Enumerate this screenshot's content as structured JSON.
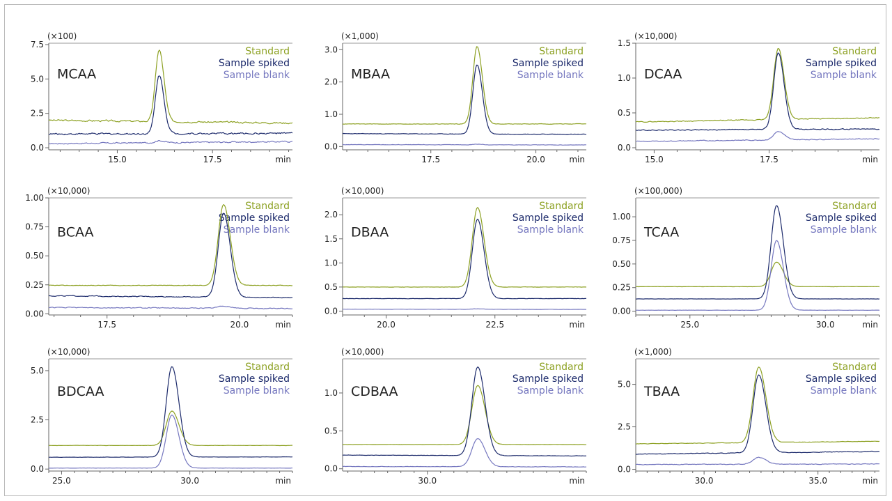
{
  "legend_labels": [
    "Standard",
    "Sample spiked",
    "Sample blank"
  ],
  "colors": {
    "standard": "#8da123",
    "spiked": "#1c2a6b",
    "blank": "#7577bf",
    "axis": "#666666",
    "text": "#222222"
  },
  "x_unit": "min",
  "chart_data": [
    {
      "type": "line",
      "title": "MCAA",
      "multiplier": "(×100)",
      "xlim": [
        13.2,
        19.6
      ],
      "ylim": [
        -0.15,
        7.6
      ],
      "xticks": [
        "15.0",
        "17.5"
      ],
      "yticks": [
        "0.0",
        "2.5",
        "5.0",
        "7.5"
      ],
      "peak_x": 16.1,
      "peak_width": 0.1,
      "series": [
        {
          "name": "Standard",
          "baseline": 2.0,
          "end": 1.8,
          "height": 5.2,
          "noise": 0.1
        },
        {
          "name": "Sample spiked",
          "baseline": 1.0,
          "end": 1.05,
          "height": 4.25,
          "noise": 0.1
        },
        {
          "name": "Sample blank",
          "baseline": 0.3,
          "end": 0.45,
          "height": 0.15,
          "noise": 0.08
        }
      ]
    },
    {
      "type": "line",
      "title": "MBAA",
      "multiplier": "(×1,000)",
      "xlim": [
        15.4,
        21.2
      ],
      "ylim": [
        -0.1,
        3.2
      ],
      "xticks": [
        "17.5",
        "20.0"
      ],
      "yticks": [
        "0.0",
        "1.0",
        "2.0",
        "3.0"
      ],
      "peak_x": 18.6,
      "peak_width": 0.1,
      "series": [
        {
          "name": "Standard",
          "baseline": 0.7,
          "end": 0.7,
          "height": 2.4,
          "noise": 0.012
        },
        {
          "name": "Sample spiked",
          "baseline": 0.4,
          "end": 0.38,
          "height": 2.15,
          "noise": 0.012
        },
        {
          "name": "Sample blank",
          "baseline": 0.06,
          "end": 0.05,
          "height": 0.02,
          "noise": 0.01
        }
      ]
    },
    {
      "type": "line",
      "title": "DCAA",
      "multiplier": "(×10,000)",
      "xlim": [
        14.6,
        19.9
      ],
      "ylim": [
        -0.03,
        1.5
      ],
      "xticks": [
        "15.0",
        "17.5"
      ],
      "yticks": [
        "0.0",
        "0.5",
        "1.0",
        "1.5"
      ],
      "peak_x": 17.7,
      "peak_width": 0.1,
      "series": [
        {
          "name": "Standard",
          "baseline": 0.37,
          "end": 0.43,
          "height": 1.02,
          "noise": 0.01
        },
        {
          "name": "Sample spiked",
          "baseline": 0.25,
          "end": 0.27,
          "height": 1.1,
          "noise": 0.012
        },
        {
          "name": "Sample blank",
          "baseline": 0.09,
          "end": 0.13,
          "height": 0.12,
          "noise": 0.01
        }
      ]
    },
    {
      "type": "line",
      "title": "BCAA",
      "multiplier": "(×10,000)",
      "xlim": [
        16.4,
        21.0
      ],
      "ylim": [
        -0.01,
        1.0
      ],
      "xticks": [
        "17.5",
        "20.0"
      ],
      "yticks": [
        "0.00",
        "0.25",
        "0.50",
        "0.75",
        "1.00"
      ],
      "peak_x": 19.7,
      "peak_width": 0.1,
      "series": [
        {
          "name": "Standard",
          "baseline": 0.245,
          "end": 0.245,
          "height": 0.7,
          "noise": 0.004
        },
        {
          "name": "Sample spiked",
          "baseline": 0.155,
          "end": 0.14,
          "height": 0.725,
          "noise": 0.006
        },
        {
          "name": "Sample blank",
          "baseline": 0.055,
          "end": 0.045,
          "height": 0.02,
          "noise": 0.006
        }
      ]
    },
    {
      "type": "line",
      "title": "DBAA",
      "multiplier": "(×10,000)",
      "xlim": [
        19.0,
        24.6
      ],
      "ylim": [
        -0.08,
        2.35
      ],
      "xticks": [
        "20.0",
        "22.5"
      ],
      "yticks": [
        "0.0",
        "0.5",
        "1.0",
        "1.5",
        "2.0"
      ],
      "peak_x": 22.1,
      "peak_width": 0.12,
      "series": [
        {
          "name": "Standard",
          "baseline": 0.5,
          "end": 0.5,
          "height": 1.65,
          "noise": 0.005
        },
        {
          "name": "Sample spiked",
          "baseline": 0.26,
          "end": 0.26,
          "height": 1.65,
          "noise": 0.005
        },
        {
          "name": "Sample blank",
          "baseline": 0.04,
          "end": 0.035,
          "height": 0.01,
          "noise": 0.004
        }
      ]
    },
    {
      "type": "line",
      "title": "TCAA",
      "multiplier": "(×100,000)",
      "xlim": [
        23.0,
        32.0
      ],
      "ylim": [
        -0.04,
        1.2
      ],
      "xticks": [
        "25.0",
        "30.0"
      ],
      "yticks": [
        "0.00",
        "0.25",
        "0.50",
        "0.75",
        "1.00"
      ],
      "peak_x": 28.2,
      "peak_width": 0.2,
      "series": [
        {
          "name": "Standard",
          "baseline": 0.26,
          "end": 0.26,
          "height": 0.26,
          "noise": 0.002
        },
        {
          "name": "Sample spiked",
          "baseline": 0.13,
          "end": 0.13,
          "height": 0.99,
          "noise": 0.002
        },
        {
          "name": "Sample blank",
          "baseline": 0.01,
          "end": 0.01,
          "height": 0.74,
          "noise": 0.002
        }
      ]
    },
    {
      "type": "line",
      "title": "BDCAA",
      "multiplier": "(×10,000)",
      "xlim": [
        24.5,
        34.0
      ],
      "ylim": [
        -0.1,
        5.6
      ],
      "xticks": [
        "25.0",
        "30.0"
      ],
      "yticks": [
        "0.0",
        "2.5",
        "5.0"
      ],
      "peak_x": 29.3,
      "peak_width": 0.22,
      "series": [
        {
          "name": "Standard",
          "baseline": 1.2,
          "end": 1.2,
          "height": 1.75,
          "noise": 0.01
        },
        {
          "name": "Sample spiked",
          "baseline": 0.6,
          "end": 0.62,
          "height": 4.6,
          "noise": 0.01
        },
        {
          "name": "Sample blank",
          "baseline": 0.05,
          "end": 0.05,
          "height": 2.7,
          "noise": 0.01
        }
      ]
    },
    {
      "type": "line",
      "title": "CDBAA",
      "multiplier": "(×10,000)",
      "xlim": [
        26.8,
        36.0
      ],
      "ylim": [
        -0.03,
        1.45
      ],
      "xticks": [
        "30.0"
      ],
      "yticks": [
        "0.0",
        "0.5",
        "1.0"
      ],
      "peak_x": 31.9,
      "peak_width": 0.22,
      "series": [
        {
          "name": "Standard",
          "baseline": 0.32,
          "end": 0.32,
          "height": 0.78,
          "noise": 0.003
        },
        {
          "name": "Sample spiked",
          "baseline": 0.18,
          "end": 0.17,
          "height": 1.17,
          "noise": 0.004
        },
        {
          "name": "Sample blank",
          "baseline": 0.03,
          "end": 0.025,
          "height": 0.37,
          "noise": 0.004
        }
      ]
    },
    {
      "type": "line",
      "title": "TBAA",
      "multiplier": "(×1,000)",
      "xlim": [
        27.0,
        37.7
      ],
      "ylim": [
        -0.1,
        6.5
      ],
      "xticks": [
        "30.0",
        "35.0"
      ],
      "yticks": [
        "0.0",
        "2.5",
        "5.0"
      ],
      "peak_x": 32.4,
      "peak_width": 0.25,
      "series": [
        {
          "name": "Standard",
          "baseline": 1.5,
          "end": 1.65,
          "height": 4.45,
          "noise": 0.02
        },
        {
          "name": "Sample spiked",
          "baseline": 0.9,
          "end": 1.05,
          "height": 4.6,
          "noise": 0.03
        },
        {
          "name": "Sample blank",
          "baseline": 0.28,
          "end": 0.32,
          "height": 0.4,
          "noise": 0.03
        }
      ]
    }
  ]
}
